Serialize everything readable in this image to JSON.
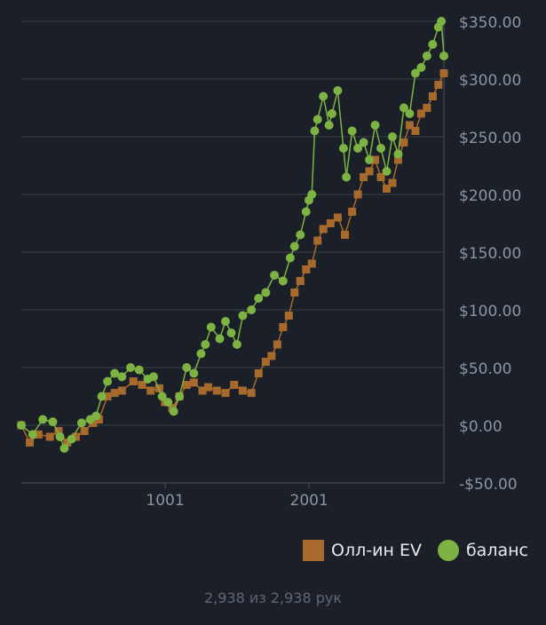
{
  "chart_data": {
    "type": "line",
    "ylim": [
      -50,
      350
    ],
    "y_ticks": [
      350,
      300,
      250,
      200,
      150,
      100,
      50,
      0,
      -50
    ],
    "y_tick_labels": [
      "$350.00",
      "$300.00",
      "$250.00",
      "$200.00",
      "$150.00",
      "$100.00",
      "$50.00",
      "$0.00",
      "-$50.00"
    ],
    "xlim": [
      1,
      2938
    ],
    "x_ticks": [
      1001,
      2001
    ],
    "x_tick_labels": [
      "1001",
      "2001"
    ],
    "grid": true,
    "legend_position": "bottom-right",
    "colors": {
      "series1": "#a86a2c",
      "series2": "#7cb342"
    },
    "series": [
      {
        "name": "Олл-ин EV",
        "marker": "square",
        "x": [
          1,
          60,
          120,
          200,
          260,
          320,
          380,
          440,
          500,
          540,
          600,
          650,
          700,
          780,
          840,
          900,
          960,
          1000,
          1050,
          1100,
          1150,
          1200,
          1260,
          1300,
          1360,
          1420,
          1480,
          1540,
          1600,
          1650,
          1700,
          1740,
          1780,
          1820,
          1860,
          1900,
          1940,
          1980,
          2020,
          2060,
          2100,
          2150,
          2200,
          2250,
          2300,
          2340,
          2380,
          2420,
          2460,
          2500,
          2540,
          2580,
          2620,
          2660,
          2700,
          2740,
          2780,
          2820,
          2860,
          2900,
          2938
        ],
        "y": [
          0,
          -15,
          -8,
          -10,
          -5,
          -15,
          -10,
          -5,
          2,
          5,
          25,
          28,
          30,
          38,
          35,
          30,
          32,
          20,
          15,
          25,
          35,
          37,
          30,
          33,
          30,
          28,
          35,
          30,
          28,
          45,
          55,
          60,
          70,
          85,
          95,
          115,
          125,
          135,
          140,
          160,
          170,
          175,
          180,
          165,
          185,
          200,
          215,
          220,
          230,
          215,
          205,
          210,
          230,
          245,
          260,
          255,
          270,
          275,
          285,
          295,
          305
        ]
      },
      {
        "name": "баланс",
        "marker": "circle",
        "x": [
          1,
          80,
          150,
          220,
          270,
          300,
          350,
          420,
          480,
          520,
          560,
          600,
          650,
          700,
          760,
          820,
          880,
          920,
          980,
          1020,
          1060,
          1100,
          1150,
          1200,
          1250,
          1280,
          1320,
          1380,
          1420,
          1460,
          1500,
          1540,
          1600,
          1650,
          1700,
          1760,
          1820,
          1870,
          1900,
          1940,
          1980,
          2000,
          2020,
          2040,
          2060,
          2100,
          2140,
          2160,
          2200,
          2240,
          2260,
          2300,
          2340,
          2380,
          2420,
          2460,
          2500,
          2540,
          2580,
          2620,
          2660,
          2700,
          2740,
          2780,
          2820,
          2860,
          2900,
          2920,
          2938
        ],
        "y": [
          0,
          -8,
          5,
          3,
          -10,
          -20,
          -12,
          2,
          5,
          8,
          25,
          38,
          45,
          42,
          50,
          48,
          40,
          42,
          25,
          20,
          12,
          25,
          50,
          45,
          62,
          70,
          85,
          75,
          90,
          80,
          70,
          95,
          100,
          110,
          115,
          130,
          125,
          145,
          155,
          165,
          185,
          195,
          200,
          255,
          265,
          285,
          260,
          270,
          290,
          240,
          215,
          255,
          240,
          245,
          230,
          260,
          240,
          220,
          250,
          235,
          275,
          270,
          305,
          310,
          320,
          330,
          345,
          350,
          320
        ]
      }
    ]
  },
  "footer": {
    "text": "2,938 из 2,938 рук"
  }
}
